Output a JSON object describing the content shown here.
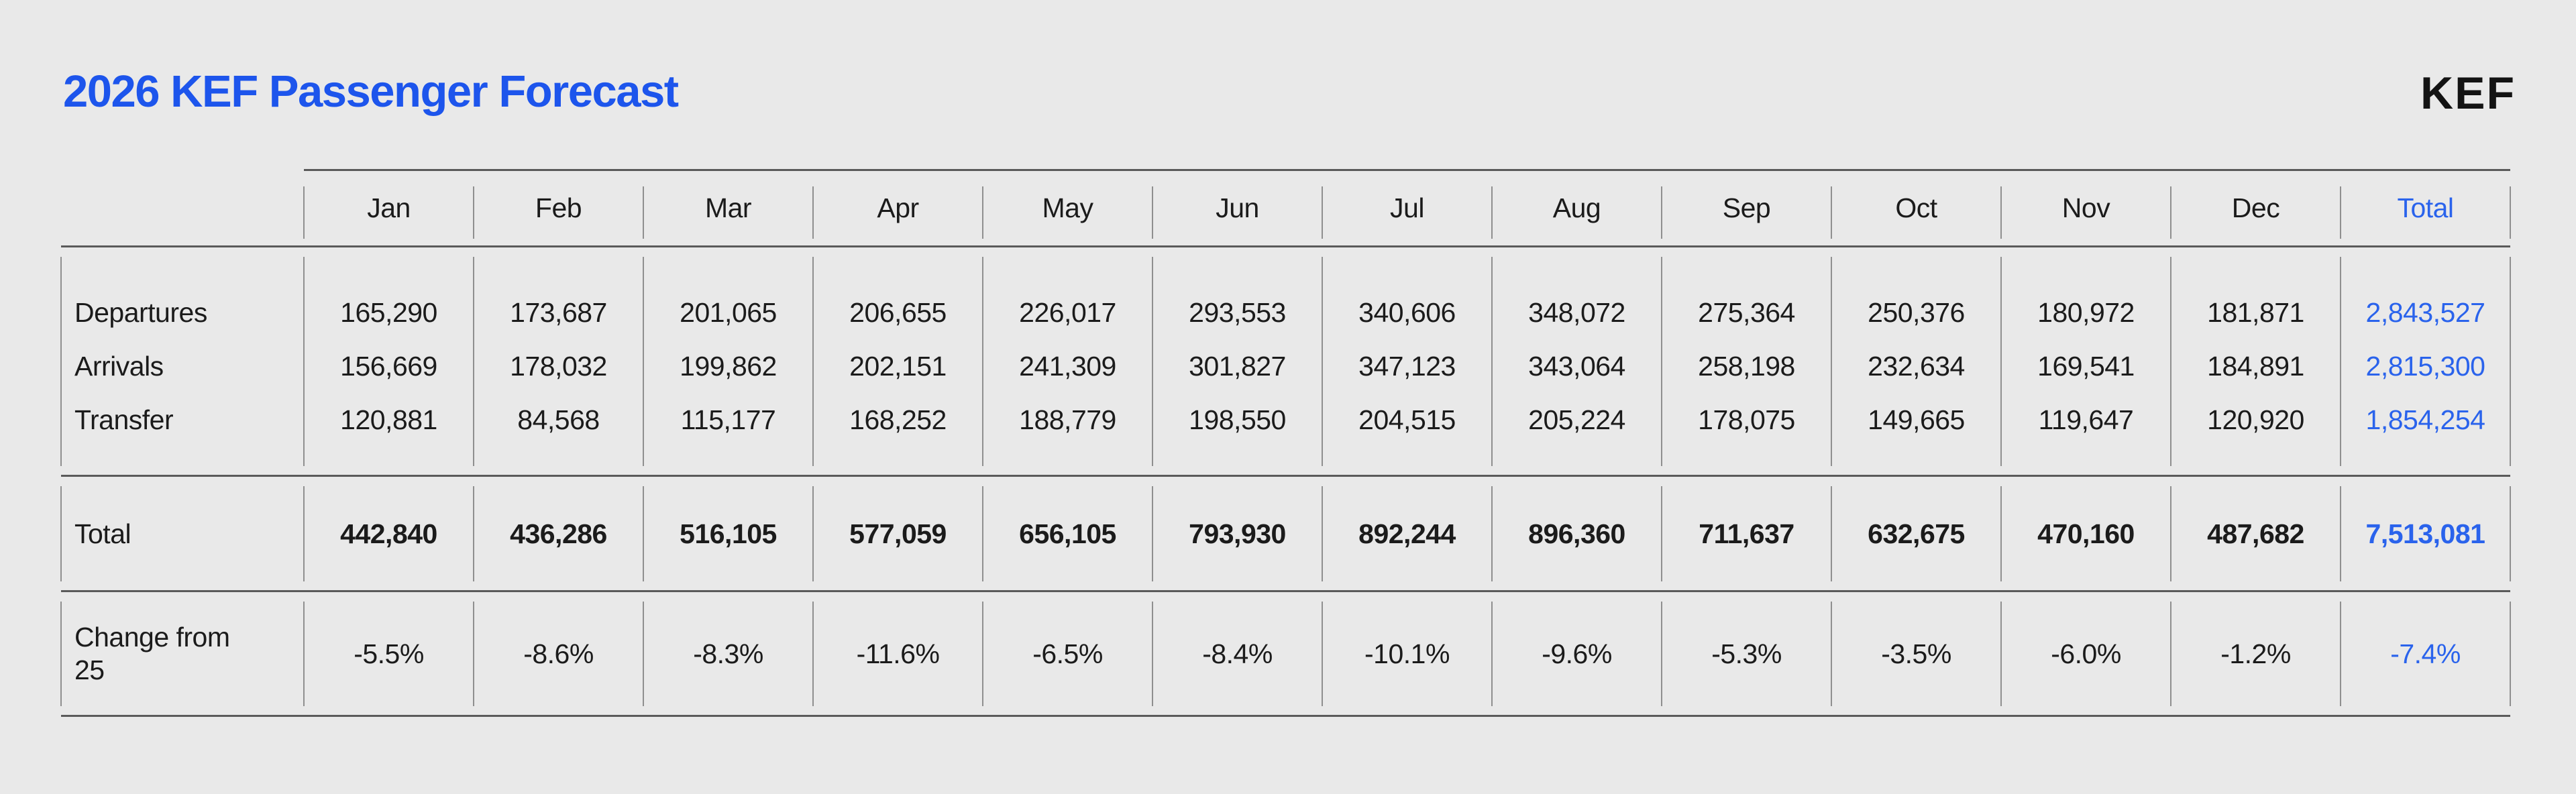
{
  "page": {
    "title": "2026 KEF Passenger Forecast",
    "logo": "KEF"
  },
  "colors": {
    "background": "#E9E9E9",
    "title_blue": "#1D55EC",
    "table_blue": "#2A63EC",
    "text": "#1B1B1B",
    "horizontal_rule": "#5A5A5A",
    "vertical_separator": "#8F8F8F"
  },
  "table": {
    "months": [
      "Jan",
      "Feb",
      "Mar",
      "Apr",
      "May",
      "Jun",
      "Jul",
      "Aug",
      "Sep",
      "Oct",
      "Nov",
      "Dec"
    ],
    "total_label": "Total",
    "rows": [
      {
        "label": "Departures",
        "values": [
          "165,290",
          "173,687",
          "201,065",
          "206,655",
          "226,017",
          "293,553",
          "340,606",
          "348,072",
          "275,364",
          "250,376",
          "180,972",
          "181,871"
        ],
        "total": "2,843,527"
      },
      {
        "label": "Arrivals",
        "values": [
          "156,669",
          "178,032",
          "199,862",
          "202,151",
          "241,309",
          "301,827",
          "347,123",
          "343,064",
          "258,198",
          "232,634",
          "169,541",
          "184,891"
        ],
        "total": "2,815,300"
      },
      {
        "label": "Transfer",
        "values": [
          "120,881",
          "84,568",
          "115,177",
          "168,252",
          "188,779",
          "198,550",
          "204,515",
          "205,224",
          "178,075",
          "149,665",
          "119,647",
          "120,920"
        ],
        "total": "1,854,254"
      }
    ],
    "total_row": {
      "label": "Total",
      "values": [
        "442,840",
        "436,286",
        "516,105",
        "577,059",
        "656,105",
        "793,930",
        "892,244",
        "896,360",
        "711,637",
        "632,675",
        "470,160",
        "487,682"
      ],
      "total": "7,513,081"
    },
    "change_row": {
      "label": "Change from 25",
      "values": [
        "-5.5%",
        "-8.6%",
        "-8.3%",
        "-11.6%",
        "-6.5%",
        "-8.4%",
        "-10.1%",
        "-9.6%",
        "-5.3%",
        "-3.5%",
        "-6.0%",
        "-1.2%"
      ],
      "total": "-7.4%"
    }
  },
  "chart_data": {
    "type": "table",
    "title": "2026 KEF Passenger Forecast",
    "columns": [
      "Jan",
      "Feb",
      "Mar",
      "Apr",
      "May",
      "Jun",
      "Jul",
      "Aug",
      "Sep",
      "Oct",
      "Nov",
      "Dec",
      "Total"
    ],
    "rows": [
      {
        "label": "Departures",
        "values": [
          165290,
          173687,
          201065,
          206655,
          226017,
          293553,
          340606,
          348072,
          275364,
          250376,
          180972,
          181871
        ],
        "total": 2843527
      },
      {
        "label": "Arrivals",
        "values": [
          156669,
          178032,
          199862,
          202151,
          241309,
          301827,
          347123,
          343064,
          258198,
          232634,
          169541,
          184891
        ],
        "total": 2815300
      },
      {
        "label": "Transfer",
        "values": [
          120881,
          84568,
          115177,
          168252,
          188779,
          198550,
          204515,
          205224,
          178075,
          149665,
          119647,
          120920
        ],
        "total": 1854254
      },
      {
        "label": "Total",
        "values": [
          442840,
          436286,
          516105,
          577059,
          656105,
          793930,
          892244,
          896360,
          711637,
          632675,
          470160,
          487682
        ],
        "total": 7513081
      },
      {
        "label": "Change from 25 (%)",
        "values": [
          -5.5,
          -8.6,
          -8.3,
          -11.6,
          -6.5,
          -8.4,
          -10.1,
          -9.6,
          -5.3,
          -3.5,
          -6.0,
          -1.2
        ],
        "total": -7.4
      }
    ]
  }
}
